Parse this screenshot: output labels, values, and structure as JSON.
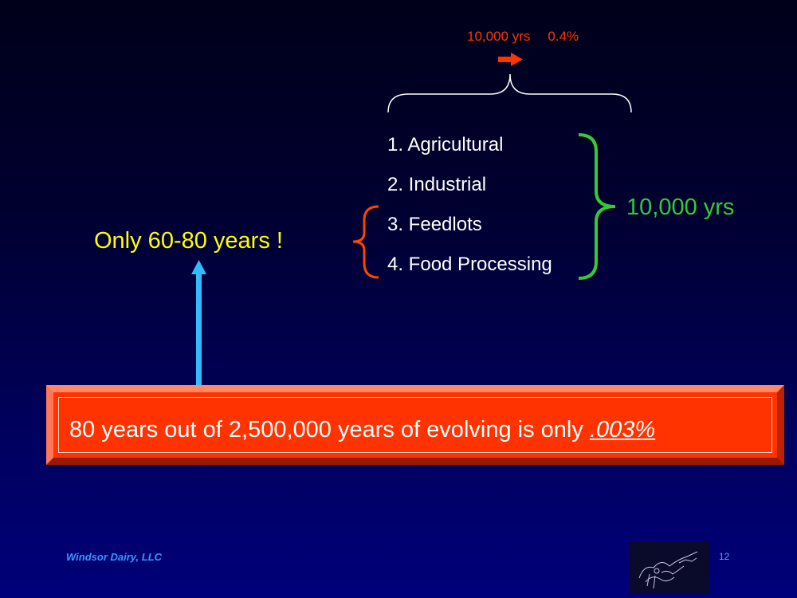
{
  "top_note": {
    "years": "10,000 yrs",
    "percent": "0.4%"
  },
  "list": [
    "1. Agricultural",
    "2. Industrial",
    "3. Feedlots",
    "4. Food Processing"
  ],
  "ten_thousand_label": "10,000 yrs",
  "only_label": "Only  60-80 years !",
  "banner": {
    "text": "80 years out of 2,500,000 years of evolving is only ",
    "percent": ".003%"
  },
  "footer": {
    "company": "Windsor Dairy, LLC",
    "page_number": "12"
  },
  "colors": {
    "top_note": "#ff3300",
    "list_text": "#ffffff",
    "green_brace": "#33cc33",
    "red_brace": "#ff4400",
    "yellow_text": "#ffff00",
    "arrow_blue": "#33bbff",
    "banner_fill": "#ff3300",
    "footer_text": "#3399ff"
  },
  "icons": {
    "top_arrow": "right-arrow-icon",
    "up_arrow": "up-arrow-icon",
    "logo": "cow-sketch-logo-icon"
  }
}
